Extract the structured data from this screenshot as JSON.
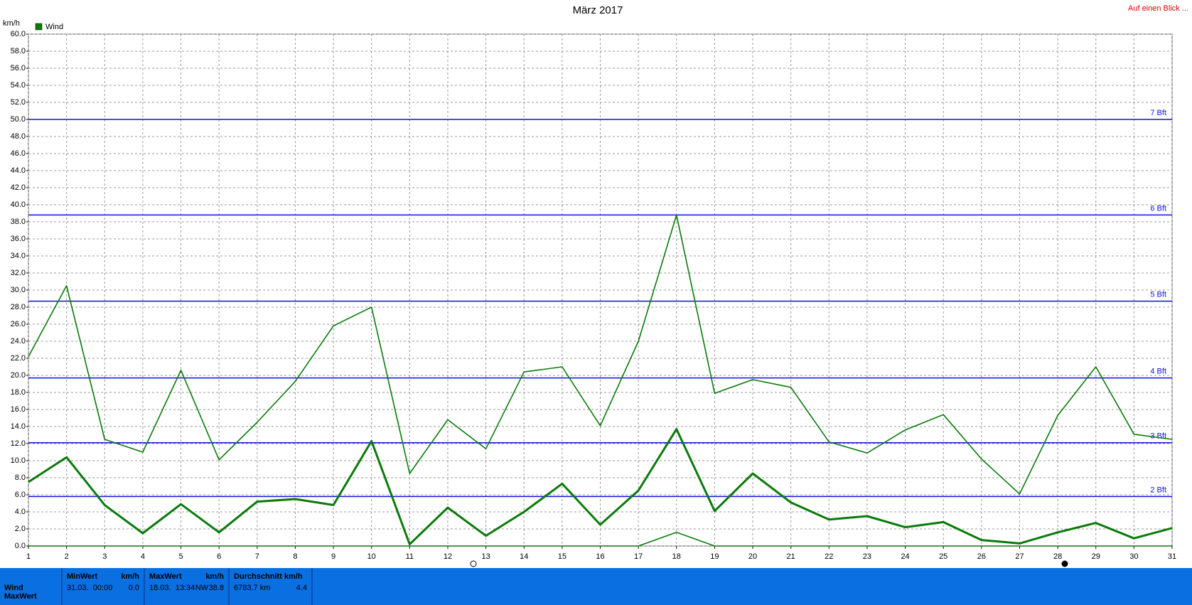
{
  "chart_data": {
    "type": "line",
    "title": "März 2017",
    "ylabel": "km/h",
    "link": "Auf einen Blick ...",
    "x": [
      1,
      2,
      3,
      4,
      5,
      6,
      7,
      8,
      9,
      10,
      11,
      12,
      13,
      14,
      15,
      16,
      17,
      18,
      19,
      20,
      21,
      22,
      23,
      24,
      25,
      26,
      27,
      28,
      29,
      30,
      31
    ],
    "xlim": [
      1,
      31
    ],
    "xticks": [
      1,
      2,
      3,
      4,
      5,
      6,
      7,
      8,
      9,
      10,
      11,
      12,
      13,
      14,
      15,
      16,
      17,
      18,
      19,
      20,
      21,
      22,
      23,
      24,
      25,
      26,
      27,
      28,
      29,
      30,
      31
    ],
    "ylim": [
      0,
      60
    ],
    "yticks": [
      {
        "value": 0,
        "label": "0.0"
      },
      {
        "value": 2,
        "label": "2.0"
      },
      {
        "value": 4,
        "label": "4.0"
      },
      {
        "value": 6,
        "label": "6.0"
      },
      {
        "value": 8,
        "label": "8.0"
      },
      {
        "value": 10,
        "label": "10.0"
      },
      {
        "value": 12,
        "label": "12.0"
      },
      {
        "value": 14,
        "label": "14.0"
      },
      {
        "value": 16,
        "label": "16.0"
      },
      {
        "value": 18,
        "label": "18.0"
      },
      {
        "value": 20,
        "label": "20.0"
      },
      {
        "value": 22,
        "label": "22.0"
      },
      {
        "value": 24,
        "label": "24.0"
      },
      {
        "value": 26,
        "label": "26.0"
      },
      {
        "value": 28,
        "label": "28.0"
      },
      {
        "value": 30,
        "label": "30.0"
      },
      {
        "value": 32,
        "label": "32.0"
      },
      {
        "value": 34,
        "label": "34.0"
      },
      {
        "value": 36,
        "label": "36.0"
      },
      {
        "value": 38,
        "label": "38.0"
      },
      {
        "value": 40,
        "label": "40.0"
      },
      {
        "value": 42,
        "label": "42.0"
      },
      {
        "value": 44,
        "label": "44.0"
      },
      {
        "value": 46,
        "label": "46.0"
      },
      {
        "value": 48,
        "label": "48.0"
      },
      {
        "value": 50,
        "label": "50.0"
      },
      {
        "value": 52,
        "label": "52.0"
      },
      {
        "value": 54,
        "label": "54.0"
      },
      {
        "value": 56,
        "label": "56.0"
      },
      {
        "value": 58,
        "label": "58.0"
      },
      {
        "value": 60,
        "label": "60.0"
      }
    ],
    "grid": true,
    "series": [
      {
        "name": "Wind",
        "color": "#0a7a0a",
        "values": [
          22.2,
          30.5,
          12.5,
          11.0,
          20.6,
          10.1,
          14.5,
          19.3,
          25.8,
          28.0,
          8.5,
          14.8,
          11.4,
          20.4,
          21.0,
          14.1,
          24.0,
          38.8,
          17.9,
          19.5,
          18.6,
          12.2,
          10.9,
          13.6,
          15.4,
          10.2,
          6.1,
          15.3,
          21.0,
          13.1,
          12.5
        ]
      },
      {
        "color": "#0a7a0a",
        "values": [
          7.5,
          10.4,
          4.8,
          1.5,
          4.9,
          1.6,
          5.2,
          5.5,
          4.8,
          12.3,
          0.2,
          4.5,
          1.2,
          4.0,
          7.3,
          2.5,
          6.5,
          13.7,
          4.1,
          8.5,
          5.1,
          3.1,
          3.5,
          2.2,
          2.8,
          0.7,
          0.3,
          1.6,
          2.7,
          0.9,
          2.1
        ]
      },
      {
        "color": "#0a7a0a",
        "values": [
          0,
          0,
          0,
          0,
          0,
          0,
          0,
          0,
          0,
          0,
          0,
          0,
          0,
          0,
          0,
          0,
          0,
          1.6,
          0,
          0,
          0,
          0,
          0,
          0,
          0,
          0,
          0,
          0,
          0,
          0,
          0
        ]
      }
    ],
    "reference_color": "#1010e0",
    "reference_lines": [
      {
        "value": 50,
        "label": "7 Bft"
      },
      {
        "value": 38.8,
        "label": "6 Bft"
      },
      {
        "value": 28.7,
        "label": "5 Bft"
      },
      {
        "value": 19.7,
        "label": "4 Bft"
      },
      {
        "value": 12.1,
        "label": "3 Bft"
      },
      {
        "value": 5.8,
        "label": "2 Bft"
      }
    ]
  },
  "summary": {
    "row_labels": [
      "Wind",
      "MaxWert"
    ],
    "columns": [
      {
        "header": "MinWert",
        "unit": "km/h",
        "text": "31.03.  00:00",
        "value": "0.0"
      },
      {
        "header": "MaxWert",
        "unit": "km/h",
        "text": "18.03.  13:34",
        "dir": "NW",
        "value": "38.8"
      },
      {
        "header": "Durchschnitt km/h",
        "text": "6783.7 km",
        "value": "4.4"
      }
    ]
  }
}
